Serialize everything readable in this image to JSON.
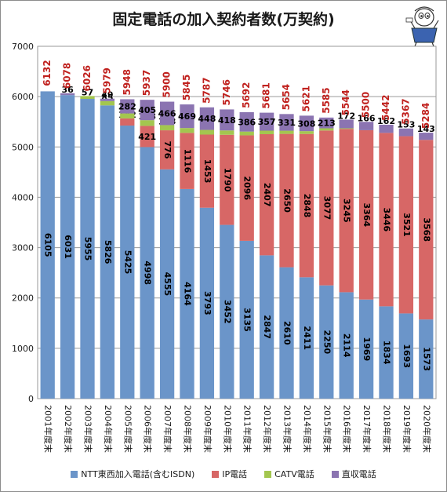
{
  "chart_data": {
    "type": "bar",
    "stacked": true,
    "title": "固定電話の加入契約者数(万契約)",
    "categories": [
      "2001年度末",
      "2002年度末",
      "2003年度末",
      "2004年度末",
      "2005年度末",
      "2006年度末",
      "2007年度末",
      "2008年度末",
      "2009年度末",
      "2010年度末",
      "2011年度末",
      "2012年度末",
      "2013年度末",
      "2014年度末",
      "2015年度末",
      "2016年度末",
      "2017年度末",
      "2018年度末",
      "2019年度末",
      "2020年度末"
    ],
    "ylim": [
      0,
      7000
    ],
    "yticks": [
      "0",
      "1000",
      "2000",
      "3000",
      "4000",
      "5000",
      "6000",
      "7000"
    ],
    "grid": true,
    "legend_position": "bottom",
    "series": [
      {
        "name": "NTT東西加入電話(含むISDN)",
        "color": "#6b95c9",
        "values": [
          6105,
          6031,
          5955,
          5826,
          5425,
          4998,
          4555,
          4164,
          3793,
          3452,
          3135,
          2847,
          2610,
          2411,
          2250,
          2114,
          1969,
          1834,
          1693,
          1573
        ]
      },
      {
        "name": "IP電話",
        "color": "#d76766",
        "values": [
          null,
          null,
          null,
          null,
          142,
          421,
          776,
          1116,
          1453,
          1790,
          2096,
          2407,
          2650,
          2848,
          3077,
          3245,
          3364,
          3446,
          3521,
          3568
        ]
      },
      {
        "name": "CATV電話",
        "color": "#a3c64f",
        "values": [
          null,
          null,
          57,
          85,
          99,
          113,
          103,
          96,
          93,
          86,
          75,
          70,
          63,
          55,
          44,
          12,
          null,
          null,
          null,
          null
        ]
      },
      {
        "name": "直収電話",
        "color": "#8b74b1",
        "values": [
          null,
          36,
          null,
          49,
          282,
          405,
          466,
          469,
          448,
          418,
          386,
          357,
          331,
          308,
          213,
          172,
          166,
          162,
          153,
          143
        ]
      }
    ],
    "totals": [
      6132,
      6078,
      6026,
      5979,
      5948,
      5937,
      5900,
      5845,
      5787,
      5746,
      5692,
      5681,
      5654,
      5621,
      5585,
      5544,
      5500,
      5442,
      5367,
      5284
    ],
    "total_color": "#c0211e"
  }
}
